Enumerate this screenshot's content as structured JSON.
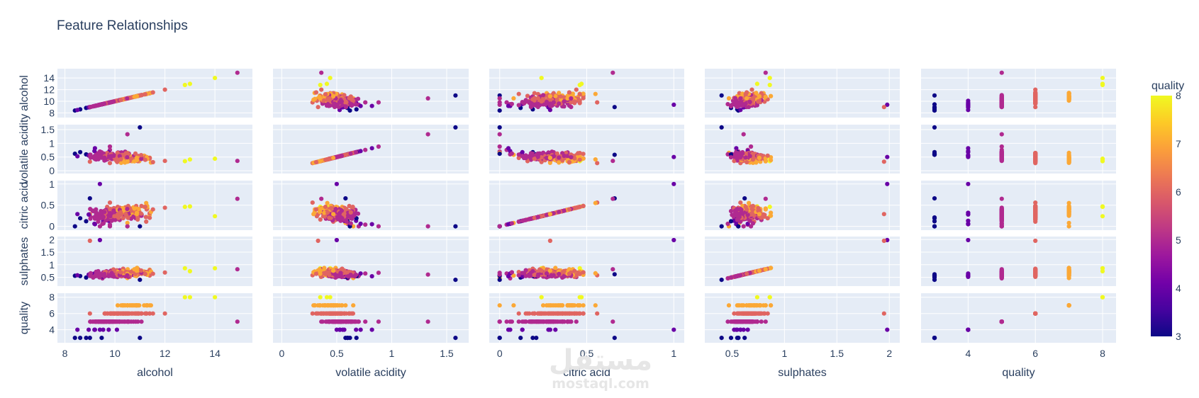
{
  "chart_data": {
    "type": "scatter",
    "title": "Feature Relationships",
    "variables": [
      "alcohol",
      "volatile acidity",
      "citric acid",
      "sulphates",
      "quality"
    ],
    "ranges": {
      "alcohol": [
        7.7,
        15.5
      ],
      "volatile acidity": [
        -0.08,
        1.7
      ],
      "citric acid": [
        -0.06,
        1.06
      ],
      "sulphates": [
        0.24,
        2.1
      ],
      "quality": [
        2.6,
        8.4
      ]
    },
    "row_ranges": {
      "alcohol": [
        7.2,
        15.6
      ],
      "volatile acidity": [
        -0.1,
        1.68
      ],
      "citric acid": [
        -0.09,
        1.08
      ],
      "sulphates": [
        0.15,
        2.12
      ],
      "quality": [
        2.4,
        8.5
      ]
    },
    "ticks": {
      "alcohol": {
        "x": [
          8,
          10,
          12,
          14
        ],
        "y": [
          8,
          10,
          12,
          14
        ]
      },
      "volatile acidity": {
        "x": [
          0,
          0.5,
          1,
          1.5
        ],
        "y": [
          0,
          0.5,
          1,
          1.5
        ]
      },
      "citric acid": {
        "x": [
          0,
          0.5,
          1
        ],
        "y": [
          0,
          0.5,
          1
        ]
      },
      "sulphates": {
        "x": [
          0.5,
          1,
          1.5,
          2
        ],
        "y": [
          0.5,
          1,
          1.5,
          2
        ]
      },
      "quality": {
        "x": [
          4,
          6,
          8
        ],
        "y": [
          4,
          6,
          8
        ]
      }
    },
    "color": {
      "variable": "quality",
      "min": 3,
      "max": 8,
      "colorbar_ticks": [
        3,
        4,
        5,
        6,
        7,
        8
      ],
      "colorbar_title": "quality"
    },
    "marker_colors": [
      "#0d0887",
      "#46039f",
      "#7201a8",
      "#9c179e",
      "#bd3786",
      "#d8576b",
      "#ed7953",
      "#fb9f3a",
      "#fdca26",
      "#f0f921"
    ],
    "point_count": 240,
    "points": [
      {
        "alcohol": 9.4,
        "volatile acidity": 0.7,
        "citric acid": 0.0,
        "sulphates": 0.56,
        "quality": 5
      },
      {
        "alcohol": 9.8,
        "volatile acidity": 0.88,
        "citric acid": 0.0,
        "sulphates": 0.68,
        "quality": 5
      },
      {
        "alcohol": 9.8,
        "volatile acidity": 0.76,
        "citric acid": 0.04,
        "sulphates": 0.65,
        "quality": 5
      },
      {
        "alcohol": 9.8,
        "volatile acidity": 0.28,
        "citric acid": 0.56,
        "sulphates": 0.58,
        "quality": 6
      },
      {
        "alcohol": 10.5,
        "volatile acidity": 0.65,
        "citric acid": 0.0,
        "sulphates": 0.47,
        "quality": 7
      },
      {
        "alcohol": 9.5,
        "volatile acidity": 0.6,
        "citric acid": 0.06,
        "sulphates": 0.46,
        "quality": 5
      },
      {
        "alcohol": 10.5,
        "volatile acidity": 0.58,
        "citric acid": 0.08,
        "sulphates": 0.57,
        "quality": 7
      },
      {
        "alcohol": 12.0,
        "volatile acidity": 0.36,
        "citric acid": 0.44,
        "sulphates": 0.69,
        "quality": 6
      },
      {
        "alcohol": 13.0,
        "volatile acidity": 0.41,
        "citric acid": 0.47,
        "sulphates": 0.74,
        "quality": 8
      },
      {
        "alcohol": 12.8,
        "volatile acidity": 0.35,
        "citric acid": 0.46,
        "sulphates": 0.86,
        "quality": 8
      },
      {
        "alcohol": 11.3,
        "volatile acidity": 0.44,
        "citric acid": 0.42,
        "sulphates": 0.71,
        "quality": 7
      },
      {
        "alcohol": 9.2,
        "volatile acidity": 0.82,
        "citric acid": 0.05,
        "sulphates": 0.54,
        "quality": 4
      },
      {
        "alcohol": 9.0,
        "volatile acidity": 0.58,
        "citric acid": 0.66,
        "sulphates": 0.62,
        "quality": 3
      },
      {
        "alcohol": 11.0,
        "volatile acidity": 1.58,
        "citric acid": 0.0,
        "sulphates": 0.4,
        "quality": 3
      },
      {
        "alcohol": 8.4,
        "volatile acidity": 0.62,
        "citric acid": 0.0,
        "sulphates": 0.56,
        "quality": 3
      },
      {
        "alcohol": 14.0,
        "volatile acidity": 0.44,
        "citric acid": 0.24,
        "sulphates": 0.86,
        "quality": 8
      },
      {
        "alcohol": 14.9,
        "volatile acidity": 0.36,
        "citric acid": 0.65,
        "sulphates": 0.82,
        "quality": 5
      },
      {
        "alcohol": 9.4,
        "volatile acidity": 0.5,
        "citric acid": 1.0,
        "sulphates": 1.98,
        "quality": 4
      },
      {
        "alcohol": 10.5,
        "volatile acidity": 1.33,
        "citric acid": 0.0,
        "sulphates": 0.61,
        "quality": 5
      },
      {
        "alcohol": 9.0,
        "volatile acidity": 0.33,
        "citric acid": 0.29,
        "sulphates": 1.95,
        "quality": 6
      }
    ],
    "x_axis_titles": [
      "alcohol",
      "volatile acidity",
      "citric acid",
      "sulphates",
      "quality"
    ],
    "y_axis_titles": [
      "alcohol",
      "volatile acidity",
      "citric acid",
      "sulphates",
      "quality"
    ]
  },
  "watermark": {
    "arabic": "مستقل",
    "latin": "mostaql.com"
  },
  "colors": {
    "plot_bg": "#e5ecf6",
    "grid": "#ffffff",
    "text": "#2a3f5f"
  }
}
